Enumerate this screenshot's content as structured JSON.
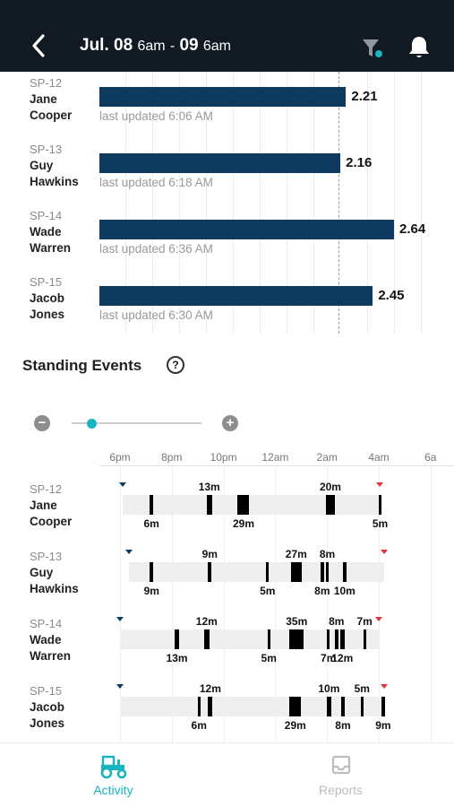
{
  "header": {
    "date_start": "Jul. 08",
    "time_start": "6am",
    "separator": "-",
    "date_end": "09",
    "time_end": "6am"
  },
  "summary": {
    "rows": [
      {
        "id": "SP-12",
        "first": "Jane",
        "last": "Cooper",
        "value": 2.21,
        "value_label": "2.21",
        "updated": "last updated 6:06 AM"
      },
      {
        "id": "SP-13",
        "first": "Guy",
        "last": "Hawkins",
        "value": 2.16,
        "value_label": "2.16",
        "updated": "last updated 6:18 AM"
      },
      {
        "id": "SP-14",
        "first": "Wade",
        "last": "Warren",
        "value": 2.64,
        "value_label": "2.64",
        "updated": "last updated 6:36 AM"
      },
      {
        "id": "SP-15",
        "first": "Jacob",
        "last": "Jones",
        "value": 2.45,
        "value_label": "2.45",
        "updated": "last updated 6:30 AM"
      }
    ]
  },
  "standing": {
    "title": "Standing Events",
    "help_icon": "question-circle-icon",
    "zoom_minus": "−",
    "zoom_plus": "+",
    "zoom_level": 0.15,
    "ticks": [
      "6pm",
      "8pm",
      "10pm",
      "12am",
      "2am",
      "4am",
      "6a"
    ],
    "rows": [
      {
        "id": "SP-12",
        "first": "Jane",
        "last": "Cooper",
        "start": 18.12,
        "end": 28.05,
        "events": [
          {
            "t": 19.15,
            "w": 0.13,
            "label": "6m",
            "pos": "below"
          },
          {
            "t": 21.35,
            "w": 0.2,
            "label": "13m",
            "pos": "above"
          },
          {
            "t": 22.55,
            "w": 0.45,
            "label": "29m",
            "pos": "below"
          },
          {
            "t": 25.97,
            "w": 0.32,
            "label": "20m",
            "pos": "above"
          },
          {
            "t": 28.0,
            "w": 0.08,
            "label": "5m",
            "pos": "below"
          }
        ]
      },
      {
        "id": "SP-13",
        "first": "Guy",
        "last": "Hawkins",
        "start": 18.35,
        "end": 28.2,
        "events": [
          {
            "t": 19.15,
            "w": 0.14,
            "label": "9m",
            "pos": "below"
          },
          {
            "t": 21.4,
            "w": 0.14,
            "label": "9m",
            "pos": "above"
          },
          {
            "t": 23.65,
            "w": 0.08,
            "label": "5m",
            "pos": "below"
          },
          {
            "t": 24.6,
            "w": 0.42,
            "label": "27m",
            "pos": "above"
          },
          {
            "t": 25.75,
            "w": 0.13,
            "label": "8m",
            "pos": "below"
          },
          {
            "t": 25.95,
            "w": 0.12,
            "label": "8m",
            "pos": "above"
          },
          {
            "t": 26.6,
            "w": 0.16,
            "label": "10m",
            "pos": "below"
          }
        ]
      },
      {
        "id": "SP-14",
        "first": "Wade",
        "last": "Warren",
        "start": 18.0,
        "end": 28.0,
        "events": [
          {
            "t": 20.1,
            "w": 0.2,
            "label": "13m",
            "pos": "below"
          },
          {
            "t": 21.25,
            "w": 0.2,
            "label": "12m",
            "pos": "above"
          },
          {
            "t": 23.7,
            "w": 0.08,
            "label": "5m",
            "pos": "below"
          },
          {
            "t": 24.55,
            "w": 0.55,
            "label": "35m",
            "pos": "above"
          },
          {
            "t": 26.0,
            "w": 0.1,
            "label": "7m",
            "pos": "below"
          },
          {
            "t": 26.3,
            "w": 0.13,
            "label": "8m",
            "pos": "above"
          },
          {
            "t": 26.5,
            "w": 0.18,
            "label": "12m",
            "pos": "below"
          },
          {
            "t": 27.4,
            "w": 0.1,
            "label": "7m",
            "pos": "above"
          }
        ]
      },
      {
        "id": "SP-15",
        "first": "Jacob",
        "last": "Jones",
        "start": 18.0,
        "end": 28.2,
        "events": [
          {
            "t": 21.0,
            "w": 0.1,
            "label": "6m",
            "pos": "below"
          },
          {
            "t": 21.4,
            "w": 0.18,
            "label": "12m",
            "pos": "above"
          },
          {
            "t": 24.55,
            "w": 0.45,
            "label": "29m",
            "pos": "below"
          },
          {
            "t": 26.0,
            "w": 0.15,
            "label": "10m",
            "pos": "above"
          },
          {
            "t": 26.55,
            "w": 0.13,
            "label": "8m",
            "pos": "below"
          },
          {
            "t": 27.3,
            "w": 0.08,
            "label": "5m",
            "pos": "above"
          },
          {
            "t": 28.1,
            "w": 0.14,
            "label": "9m",
            "pos": "below"
          }
        ]
      }
    ]
  },
  "tabs": [
    {
      "label": "Activity",
      "icon": "tractor-icon",
      "active": true
    },
    {
      "label": "Reports",
      "icon": "inbox-tray-icon",
      "active": false
    }
  ],
  "colors": {
    "header_bg": "#111a22",
    "bar": "#0f3a5f",
    "accent": "#19b4c2",
    "start_marker": "#0f3a5f",
    "end_marker": "#e2333f"
  }
}
